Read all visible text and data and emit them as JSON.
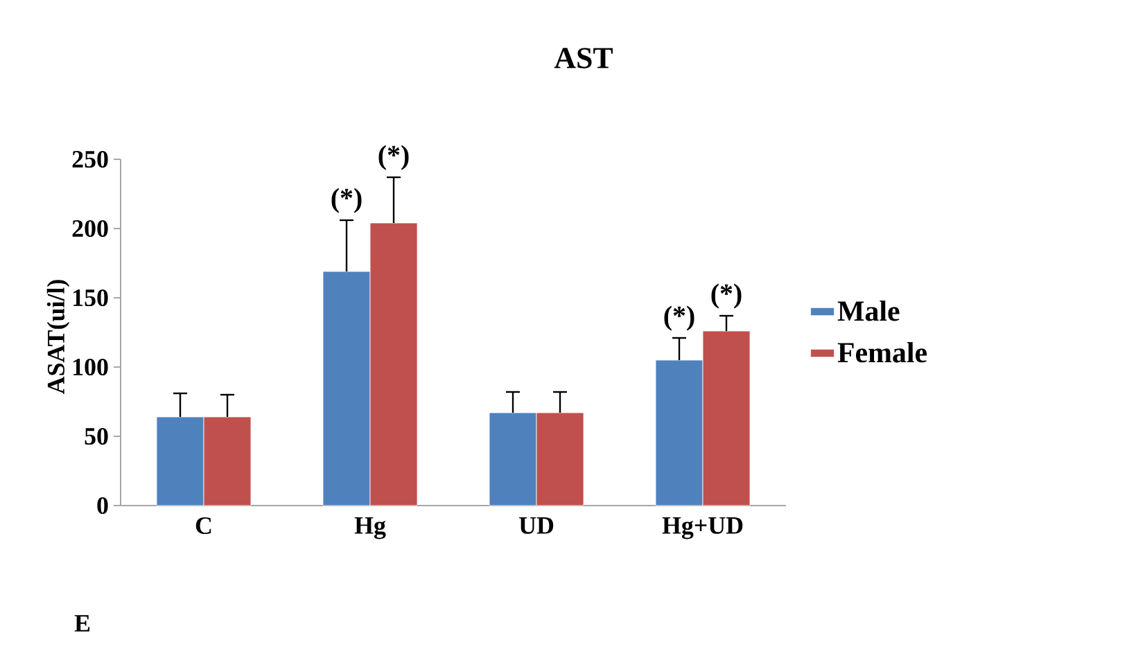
{
  "chart_data": {
    "type": "bar",
    "title": "AST",
    "ylabel": "ASAT(ui/l)",
    "categories": [
      "C",
      "Hg",
      "UD",
      "Hg+UD"
    ],
    "series": [
      {
        "name": "Male",
        "color": "#4f81bd",
        "values": [
          64,
          169,
          67,
          105
        ],
        "errors": [
          [
            64,
            81
          ],
          [
            169,
            206
          ],
          [
            67,
            82
          ],
          [
            105,
            121
          ]
        ]
      },
      {
        "name": "Female",
        "color": "#c0504d",
        "values": [
          64,
          204,
          67,
          126
        ],
        "errors": [
          [
            64,
            80
          ],
          [
            204,
            237
          ],
          [
            67,
            82
          ],
          [
            126,
            137
          ]
        ]
      }
    ],
    "ylim": [
      0,
      250
    ],
    "yticks": [
      0,
      50,
      100,
      150,
      200,
      250
    ],
    "legend": "right",
    "grid": false,
    "annotations": [
      {
        "text": "(*)",
        "x": "Hg",
        "y": 169
      },
      {
        "text": "(*)",
        "x": "Hg",
        "y": 204
      },
      {
        "text": "(*)",
        "x": "Hg+UD",
        "y": 105
      },
      {
        "text": "(*)",
        "x": "Hg+UD",
        "y": 126
      },
      "E"
    ]
  }
}
